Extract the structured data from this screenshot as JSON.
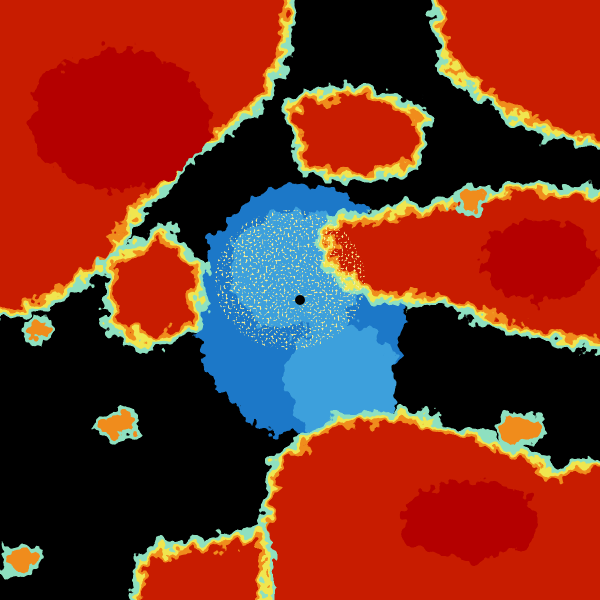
{
  "image": {
    "kind": "radar-ppi-sweep",
    "palette": {
      "background": "#000000",
      "low": "#1e78c8",
      "low_mid": "#3ca0dc",
      "mid": "#8ee0c0",
      "mid_high": "#f0e650",
      "high": "#f08c1e",
      "very_high": "#c81e00",
      "max": "#b40000"
    }
  }
}
